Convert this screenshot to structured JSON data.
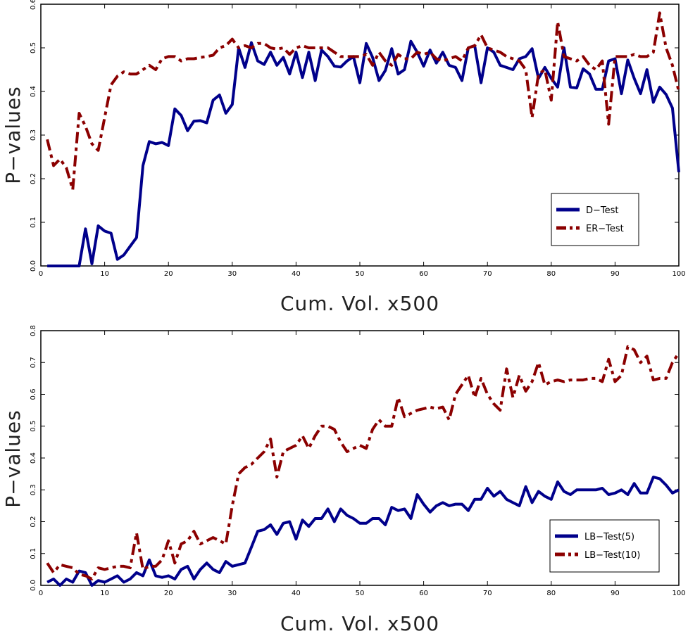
{
  "chart_data": [
    {
      "type": "line",
      "xlabel": "Cum. Vol. x500",
      "ylabel": "P−values",
      "xlim": [
        0,
        100
      ],
      "ylim": [
        0,
        0.6
      ],
      "xticks": [
        0,
        10,
        20,
        30,
        40,
        50,
        60,
        70,
        80,
        90,
        100
      ],
      "yticks": [
        0.0,
        0.1,
        0.2,
        0.3,
        0.4,
        0.5,
        0.6
      ],
      "ytick_labels": [
        "0.0",
        "0.1",
        "0.2",
        "0.3",
        "0.4",
        "0.5",
        "0.6"
      ],
      "grid": false,
      "legend_position": "lower-right",
      "series": [
        {
          "name": "D−Test",
          "color": "#00008B",
          "style": "solid",
          "x": [
            1,
            2,
            3,
            4,
            5,
            6,
            7,
            8,
            9,
            10,
            11,
            12,
            13,
            14,
            15,
            16,
            17,
            18,
            19,
            20,
            21,
            22,
            23,
            24,
            25,
            26,
            27,
            28,
            29,
            30,
            31,
            32,
            33,
            34,
            35,
            36,
            37,
            38,
            39,
            40,
            41,
            42,
            43,
            44,
            45,
            46,
            47,
            48,
            49,
            50,
            51,
            52,
            53,
            54,
            55,
            56,
            57,
            58,
            59,
            60,
            61,
            62,
            63,
            64,
            65,
            66,
            67,
            68,
            69,
            70,
            71,
            72,
            73,
            74,
            75,
            76,
            77,
            78,
            79,
            80,
            81,
            82,
            83,
            84,
            85,
            86,
            87,
            88,
            89,
            90,
            91,
            92,
            93,
            94,
            95,
            96,
            97,
            98,
            99,
            100
          ],
          "values": [
            0,
            0,
            0,
            0,
            0,
            0,
            0.085,
            0.005,
            0.092,
            0.08,
            0.075,
            0.015,
            0.025,
            0.045,
            0.065,
            0.23,
            0.285,
            0.28,
            0.283,
            0.276,
            0.36,
            0.345,
            0.31,
            0.332,
            0.333,
            0.328,
            0.38,
            0.392,
            0.35,
            0.37,
            0.5,
            0.455,
            0.512,
            0.47,
            0.462,
            0.49,
            0.46,
            0.478,
            0.44,
            0.49,
            0.432,
            0.49,
            0.425,
            0.495,
            0.48,
            0.458,
            0.456,
            0.47,
            0.48,
            0.42,
            0.51,
            0.478,
            0.425,
            0.448,
            0.498,
            0.44,
            0.45,
            0.515,
            0.49,
            0.458,
            0.495,
            0.465,
            0.49,
            0.46,
            0.455,
            0.425,
            0.5,
            0.505,
            0.42,
            0.5,
            0.49,
            0.46,
            0.455,
            0.45,
            0.475,
            0.48,
            0.498,
            0.43,
            0.455,
            0.43,
            0.41,
            0.5,
            0.41,
            0.408,
            0.452,
            0.44,
            0.405,
            0.405,
            0.47,
            0.475,
            0.395,
            0.472,
            0.43,
            0.395,
            0.45,
            0.375,
            0.41,
            0.393,
            0.362,
            0.215
          ]
        },
        {
          "name": "ER−Test",
          "color": "#8B0000",
          "style": "dashed",
          "x": [
            1,
            2,
            3,
            4,
            5,
            6,
            7,
            8,
            9,
            10,
            11,
            12,
            13,
            14,
            15,
            16,
            17,
            18,
            19,
            20,
            21,
            22,
            23,
            24,
            25,
            26,
            27,
            28,
            29,
            30,
            31,
            32,
            33,
            34,
            35,
            36,
            37,
            38,
            39,
            40,
            41,
            42,
            43,
            44,
            45,
            46,
            47,
            48,
            49,
            50,
            51,
            52,
            53,
            54,
            55,
            56,
            57,
            58,
            59,
            60,
            61,
            62,
            63,
            64,
            65,
            66,
            67,
            68,
            69,
            70,
            71,
            72,
            73,
            74,
            75,
            76,
            77,
            78,
            79,
            80,
            81,
            82,
            83,
            84,
            85,
            86,
            87,
            88,
            89,
            90,
            91,
            92,
            93,
            94,
            95,
            96,
            97,
            98,
            99,
            100
          ],
          "values": [
            0.29,
            0.23,
            0.245,
            0.225,
            0.175,
            0.35,
            0.32,
            0.28,
            0.265,
            0.34,
            0.415,
            0.435,
            0.445,
            0.44,
            0.44,
            0.45,
            0.46,
            0.45,
            0.475,
            0.48,
            0.48,
            0.47,
            0.475,
            0.475,
            0.478,
            0.48,
            0.483,
            0.5,
            0.505,
            0.52,
            0.5,
            0.505,
            0.5,
            0.51,
            0.51,
            0.5,
            0.497,
            0.5,
            0.485,
            0.5,
            0.505,
            0.5,
            0.5,
            0.5,
            0.5,
            0.49,
            0.48,
            0.48,
            0.48,
            0.48,
            0.485,
            0.46,
            0.49,
            0.47,
            0.46,
            0.485,
            0.475,
            0.475,
            0.49,
            0.485,
            0.49,
            0.475,
            0.47,
            0.475,
            0.48,
            0.47,
            0.5,
            0.505,
            0.53,
            0.5,
            0.495,
            0.49,
            0.48,
            0.475,
            0.47,
            0.45,
            0.34,
            0.44,
            0.45,
            0.38,
            0.56,
            0.48,
            0.475,
            0.47,
            0.48,
            0.46,
            0.45,
            0.47,
            0.325,
            0.48,
            0.48,
            0.48,
            0.485,
            0.48,
            0.48,
            0.49,
            0.58,
            0.5,
            0.46,
            0.4
          ]
        }
      ]
    },
    {
      "type": "line",
      "xlabel": "Cum. Vol. x500",
      "ylabel": "P−values",
      "xlim": [
        0,
        100
      ],
      "ylim": [
        0,
        0.8
      ],
      "xticks": [
        0,
        10,
        20,
        30,
        40,
        50,
        60,
        70,
        80,
        90,
        100
      ],
      "yticks": [
        0.0,
        0.1,
        0.2,
        0.3,
        0.4,
        0.5,
        0.6,
        0.7,
        0.8
      ],
      "ytick_labels": [
        "0.0",
        "0.1",
        "0.2",
        "0.3",
        "0.4",
        "0.5",
        "0.6",
        "0.7",
        "0.8"
      ],
      "grid": false,
      "legend_position": "lower-right",
      "series": [
        {
          "name": "LB−Test(5)",
          "color": "#00008B",
          "style": "solid",
          "x": [
            1,
            2,
            3,
            4,
            5,
            6,
            7,
            8,
            9,
            10,
            11,
            12,
            13,
            14,
            15,
            16,
            17,
            18,
            19,
            20,
            21,
            22,
            23,
            24,
            25,
            26,
            27,
            28,
            29,
            30,
            31,
            32,
            33,
            34,
            35,
            36,
            37,
            38,
            39,
            40,
            41,
            42,
            43,
            44,
            45,
            46,
            47,
            48,
            49,
            50,
            51,
            52,
            53,
            54,
            55,
            56,
            57,
            58,
            59,
            60,
            61,
            62,
            63,
            64,
            65,
            66,
            67,
            68,
            69,
            70,
            71,
            72,
            73,
            74,
            75,
            76,
            77,
            78,
            79,
            80,
            81,
            82,
            83,
            84,
            85,
            86,
            87,
            88,
            89,
            90,
            91,
            92,
            93,
            94,
            95,
            96,
            97,
            98,
            99,
            100
          ],
          "values": [
            0.01,
            0.02,
            0.0,
            0.02,
            0.01,
            0.045,
            0.04,
            0.0,
            0.015,
            0.01,
            0.02,
            0.03,
            0.01,
            0.02,
            0.04,
            0.03,
            0.08,
            0.03,
            0.025,
            0.03,
            0.02,
            0.05,
            0.06,
            0.02,
            0.05,
            0.07,
            0.05,
            0.04,
            0.075,
            0.06,
            0.065,
            0.07,
            0.12,
            0.17,
            0.175,
            0.19,
            0.16,
            0.195,
            0.2,
            0.145,
            0.205,
            0.185,
            0.21,
            0.21,
            0.24,
            0.2,
            0.24,
            0.22,
            0.21,
            0.195,
            0.195,
            0.21,
            0.21,
            0.19,
            0.245,
            0.235,
            0.24,
            0.21,
            0.285,
            0.255,
            0.23,
            0.25,
            0.26,
            0.25,
            0.255,
            0.255,
            0.235,
            0.27,
            0.27,
            0.305,
            0.28,
            0.295,
            0.27,
            0.26,
            0.25,
            0.31,
            0.26,
            0.295,
            0.28,
            0.27,
            0.325,
            0.295,
            0.285,
            0.3,
            0.3,
            0.3,
            0.3,
            0.305,
            0.285,
            0.29,
            0.3,
            0.285,
            0.32,
            0.29,
            0.29,
            0.34,
            0.335,
            0.315,
            0.29,
            0.3
          ]
        },
        {
          "name": "LB−Test(10)",
          "color": "#8B0000",
          "style": "dashed",
          "x": [
            1,
            2,
            3,
            4,
            5,
            6,
            7,
            8,
            9,
            10,
            11,
            12,
            13,
            14,
            15,
            16,
            17,
            18,
            19,
            20,
            21,
            22,
            23,
            24,
            25,
            26,
            27,
            28,
            29,
            30,
            31,
            32,
            33,
            34,
            35,
            36,
            37,
            38,
            39,
            40,
            41,
            42,
            43,
            44,
            45,
            46,
            47,
            48,
            49,
            50,
            51,
            52,
            53,
            54,
            55,
            56,
            57,
            58,
            59,
            60,
            61,
            62,
            63,
            64,
            65,
            66,
            67,
            68,
            69,
            70,
            71,
            72,
            73,
            74,
            75,
            76,
            77,
            78,
            79,
            80,
            81,
            82,
            83,
            84,
            85,
            86,
            87,
            88,
            89,
            90,
            91,
            92,
            93,
            94,
            95,
            96,
            97,
            98,
            99,
            100
          ],
          "values": [
            0.07,
            0.04,
            0.065,
            0.06,
            0.055,
            0.035,
            0.03,
            0.02,
            0.055,
            0.05,
            0.055,
            0.06,
            0.06,
            0.055,
            0.165,
            0.05,
            0.06,
            0.06,
            0.08,
            0.14,
            0.07,
            0.13,
            0.14,
            0.17,
            0.13,
            0.14,
            0.15,
            0.14,
            0.13,
            0.25,
            0.35,
            0.37,
            0.38,
            0.4,
            0.42,
            0.46,
            0.34,
            0.42,
            0.43,
            0.44,
            0.47,
            0.43,
            0.47,
            0.5,
            0.5,
            0.49,
            0.45,
            0.42,
            0.43,
            0.44,
            0.43,
            0.49,
            0.52,
            0.5,
            0.5,
            0.59,
            0.53,
            0.54,
            0.55,
            0.555,
            0.56,
            0.555,
            0.56,
            0.52,
            0.6,
            0.63,
            0.66,
            0.59,
            0.65,
            0.6,
            0.57,
            0.55,
            0.68,
            0.59,
            0.66,
            0.61,
            0.64,
            0.7,
            0.63,
            0.64,
            0.645,
            0.64,
            0.645,
            0.645,
            0.645,
            0.65,
            0.65,
            0.64,
            0.71,
            0.64,
            0.66,
            0.75,
            0.74,
            0.7,
            0.72,
            0.645,
            0.65,
            0.65,
            0.7,
            0.73
          ]
        }
      ]
    }
  ],
  "legends": [
    {
      "items": [
        "D−Test",
        "ER−Test"
      ]
    },
    {
      "items": [
        "LB−Test(5)",
        "LB−Test(10)"
      ]
    }
  ]
}
